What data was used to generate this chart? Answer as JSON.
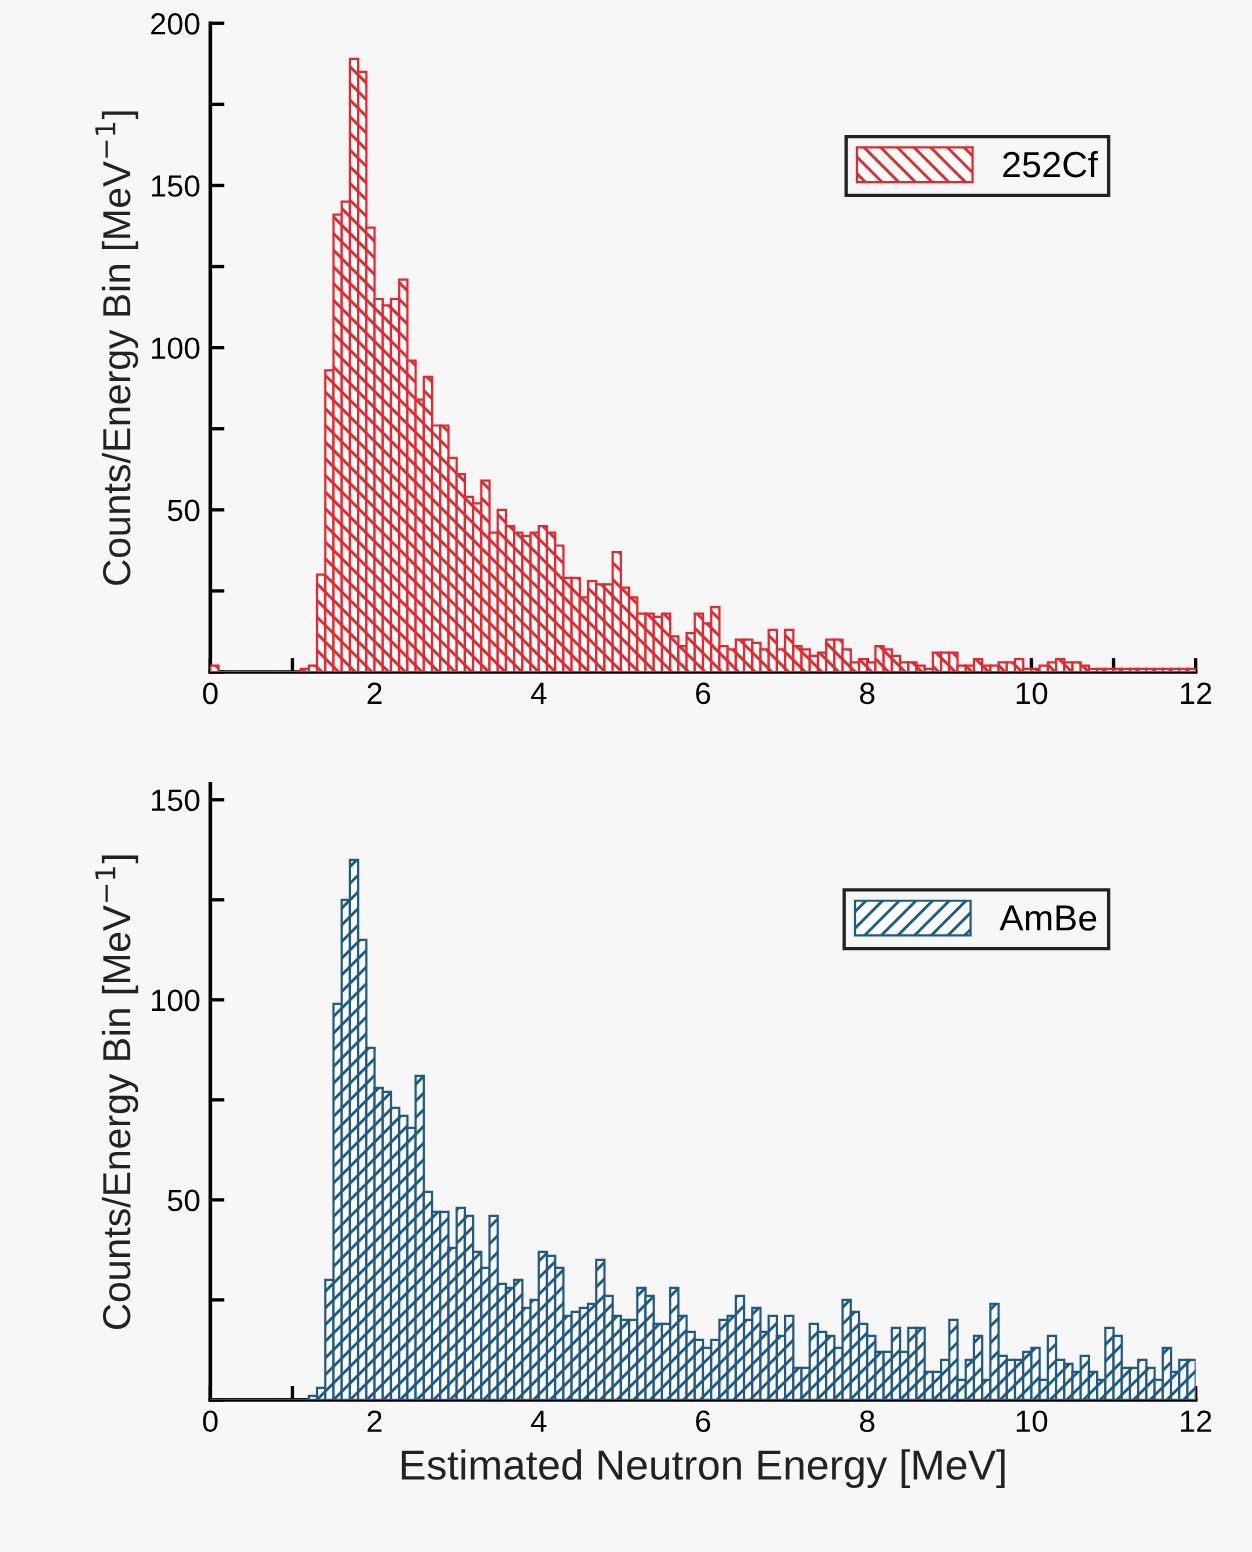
{
  "chart_data": [
    {
      "type": "histogram",
      "ylabel": "Counts/Energy Bin [MeV$^{−1}$]",
      "bins": [
        0,
        0.1,
        0.2,
        0.3,
        0.4,
        0.5,
        0.6,
        0.7,
        0.8,
        0.9,
        1,
        1.1,
        1.2,
        1.3,
        1.4,
        1.5,
        1.6,
        1.7,
        1.8,
        1.9,
        2,
        2.1,
        2.2,
        2.3,
        2.4,
        2.5,
        2.6,
        2.7,
        2.8,
        2.9,
        3,
        3.1,
        3.2,
        3.3,
        3.4,
        3.5,
        3.6,
        3.7,
        3.8,
        3.9,
        4,
        4.1,
        4.2,
        4.3,
        4.4,
        4.5,
        4.6,
        4.7,
        4.8,
        4.9,
        5,
        5.1,
        5.2,
        5.3,
        5.4,
        5.5,
        5.6,
        5.7,
        5.8,
        5.9,
        6,
        6.1,
        6.2,
        6.3,
        6.4,
        6.5,
        6.6,
        6.7,
        6.8,
        6.9,
        7,
        7.1,
        7.2,
        7.3,
        7.4,
        7.5,
        7.6,
        7.7,
        7.8,
        7.9,
        8,
        8.1,
        8.2,
        8.3,
        8.4,
        8.5,
        8.6,
        8.7,
        8.8,
        8.9,
        9,
        9.1,
        9.2,
        9.3,
        9.4,
        9.5,
        9.6,
        9.7,
        9.8,
        9.9,
        10,
        10.1,
        10.2,
        10.3,
        10.4,
        10.5,
        10.6,
        10.7,
        10.8,
        10.9,
        11,
        11.1,
        11.2,
        11.3,
        11.4,
        11.5,
        11.6,
        11.7,
        11.8,
        11.9,
        12
      ],
      "series": [
        {
          "name": "252Cf",
          "color": "#e8262c",
          "values": [
            2,
            0,
            0,
            0,
            0,
            0,
            0,
            0,
            0,
            0,
            0,
            1,
            2,
            30,
            93,
            141,
            145,
            189,
            185,
            137,
            115,
            113,
            115,
            121,
            96,
            84,
            91,
            76,
            76,
            66,
            61,
            54,
            52,
            59,
            43,
            50,
            45,
            43,
            42,
            43,
            45,
            43,
            39,
            29,
            29,
            23,
            28,
            27,
            27,
            37,
            26,
            23,
            18,
            18,
            17,
            18,
            11,
            8,
            12,
            18,
            15,
            20,
            8,
            7,
            10,
            10,
            9,
            7,
            13,
            7,
            13,
            8,
            7,
            5,
            6,
            10,
            10,
            7,
            3,
            4,
            3,
            8,
            7,
            5,
            3,
            3,
            2,
            1,
            6,
            6,
            6,
            2,
            2,
            4,
            2,
            2,
            3,
            3,
            4,
            1,
            1,
            2,
            3,
            4,
            3,
            3,
            2,
            1,
            1,
            1,
            1,
            1,
            1,
            1,
            1,
            1,
            1,
            1,
            1,
            1
          ]
        }
      ],
      "xlim": [
        0,
        12
      ],
      "xticks": [
        0,
        {
          "value": 1,
          "label": null
        },
        2,
        {
          "value": 3,
          "label": null
        },
        4,
        {
          "value": 5,
          "label": null
        },
        6,
        {
          "value": 7,
          "label": null
        },
        8,
        {
          "value": 9,
          "label": null
        },
        10,
        {
          "value": 11,
          "label": null
        },
        12
      ],
      "ylim": [
        0,
        200
      ],
      "yticks": [
        {
          "value": 0,
          "label": null
        },
        {
          "value": 25,
          "label": null
        },
        50,
        {
          "value": 75,
          "label": null
        },
        100,
        {
          "value": 125,
          "label": null
        },
        150,
        {
          "value": 175,
          "label": null
        },
        200
      ],
      "legend": "right",
      "grid": false
    },
    {
      "type": "histogram",
      "xlabel": "Estimated Neutron Energy [MeV]",
      "ylabel": "Counts/Energy Bin [MeV$^{−1}$]",
      "bins": [
        0,
        0.1,
        0.2,
        0.3,
        0.4,
        0.5,
        0.6,
        0.7,
        0.8,
        0.9,
        1,
        1.1,
        1.2,
        1.3,
        1.4,
        1.5,
        1.6,
        1.7,
        1.8,
        1.9,
        2,
        2.1,
        2.2,
        2.3,
        2.4,
        2.5,
        2.6,
        2.7,
        2.8,
        2.9,
        3,
        3.1,
        3.2,
        3.3,
        3.4,
        3.5,
        3.6,
        3.7,
        3.8,
        3.9,
        4,
        4.1,
        4.2,
        4.3,
        4.4,
        4.5,
        4.6,
        4.7,
        4.8,
        4.9,
        5,
        5.1,
        5.2,
        5.3,
        5.4,
        5.5,
        5.6,
        5.7,
        5.8,
        5.9,
        6,
        6.1,
        6.2,
        6.3,
        6.4,
        6.5,
        6.6,
        6.7,
        6.8,
        6.9,
        7,
        7.1,
        7.2,
        7.3,
        7.4,
        7.5,
        7.6,
        7.7,
        7.8,
        7.9,
        8,
        8.1,
        8.2,
        8.3,
        8.4,
        8.5,
        8.6,
        8.7,
        8.8,
        8.9,
        9,
        9.1,
        9.2,
        9.3,
        9.4,
        9.5,
        9.6,
        9.7,
        9.8,
        9.9,
        10,
        10.1,
        10.2,
        10.3,
        10.4,
        10.5,
        10.6,
        10.7,
        10.8,
        10.9,
        11,
        11.1,
        11.2,
        11.3,
        11.4,
        11.5,
        11.6,
        11.7,
        11.8,
        11.9,
        12
      ],
      "series": [
        {
          "name": "AmBe",
          "color": "#1f5a85",
          "values": [
            0,
            0,
            0,
            0,
            0,
            0,
            0,
            0,
            0,
            0,
            0,
            0,
            1,
            3,
            30,
            99,
            125,
            135,
            115,
            88,
            78,
            77,
            73,
            71,
            68,
            81,
            52,
            47,
            47,
            38,
            48,
            46,
            37,
            33,
            46,
            29,
            28,
            30,
            23,
            25,
            37,
            36,
            33,
            21,
            22,
            23,
            24,
            35,
            26,
            21,
            20,
            20,
            28,
            26,
            19,
            19,
            28,
            21,
            17,
            15,
            13,
            15,
            20,
            21,
            26,
            20,
            23,
            17,
            21,
            16,
            21,
            8,
            8,
            19,
            17,
            16,
            13,
            25,
            22,
            19,
            16,
            12,
            12,
            18,
            12,
            18,
            18,
            7,
            7,
            10,
            20,
            5,
            10,
            16,
            5,
            24,
            11,
            10,
            10,
            12,
            13,
            5,
            16,
            10,
            9,
            7,
            11,
            7,
            5,
            18,
            16,
            8,
            8,
            10,
            8,
            5,
            13,
            7,
            10,
            10
          ]
        }
      ],
      "xlim": [
        0,
        12
      ],
      "xticks": [
        0,
        {
          "value": 1,
          "label": null
        },
        2,
        {
          "value": 3,
          "label": null
        },
        4,
        {
          "value": 5,
          "label": null
        },
        6,
        {
          "value": 7,
          "label": null
        },
        8,
        {
          "value": 9,
          "label": null
        },
        10,
        {
          "value": 11,
          "label": null
        },
        12
      ],
      "ylim": [
        0,
        154
      ],
      "yticks": [
        {
          "value": 0,
          "label": null
        },
        {
          "value": 25,
          "label": null
        },
        50,
        {
          "value": 75,
          "label": null
        },
        100,
        {
          "value": 125,
          "label": null
        },
        150
      ],
      "legend": "right",
      "grid": false
    }
  ]
}
